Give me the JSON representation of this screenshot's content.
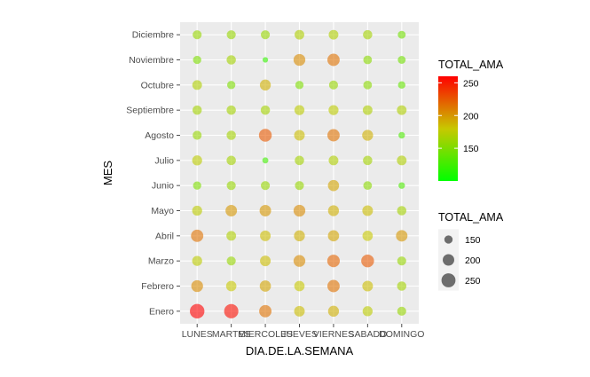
{
  "chart_data": {
    "type": "scatter",
    "title": "",
    "xlabel": "DIA.DE.LA.SEMANA",
    "ylabel": "MES",
    "x_categories": [
      "LUNES",
      "MARTES",
      "MIERCOLES",
      "JUEVES",
      "VIERNES",
      "SABADO",
      "DOMINGO"
    ],
    "y_categories": [
      "Enero",
      "Febrero",
      "Marzo",
      "Abril",
      "Mayo",
      "Junio",
      "Julio",
      "Agosto",
      "Septiembre",
      "Octubre",
      "Noviembre",
      "Diciembre"
    ],
    "value_name": "TOTAL_AMA",
    "grid": true,
    "legend_position": "right",
    "color_scale": {
      "low": "#00ff00",
      "high": "#ff0000",
      "domain": [
        100,
        260
      ],
      "breaks": [
        150,
        200,
        250
      ]
    },
    "size_scale": {
      "domain": [
        100,
        265
      ],
      "breaks": [
        150,
        200,
        250
      ]
    },
    "values": [
      [
        262,
        255,
        215,
        185,
        190,
        175,
        160
      ],
      [
        205,
        180,
        195,
        180,
        215,
        185,
        165
      ],
      [
        175,
        160,
        185,
        205,
        220,
        225,
        160
      ],
      [
        215,
        170,
        185,
        190,
        195,
        180,
        200
      ],
      [
        175,
        200,
        200,
        205,
        190,
        185,
        165
      ],
      [
        150,
        160,
        160,
        160,
        195,
        155,
        130
      ],
      [
        175,
        165,
        125,
        165,
        170,
        165,
        170
      ],
      [
        160,
        165,
        225,
        185,
        215,
        190,
        130
      ],
      [
        165,
        165,
        165,
        175,
        175,
        170,
        170
      ],
      [
        170,
        150,
        190,
        150,
        160,
        155,
        140
      ],
      [
        150,
        165,
        120,
        205,
        215,
        155,
        145
      ],
      [
        160,
        160,
        160,
        170,
        170,
        165,
        145
      ]
    ]
  }
}
